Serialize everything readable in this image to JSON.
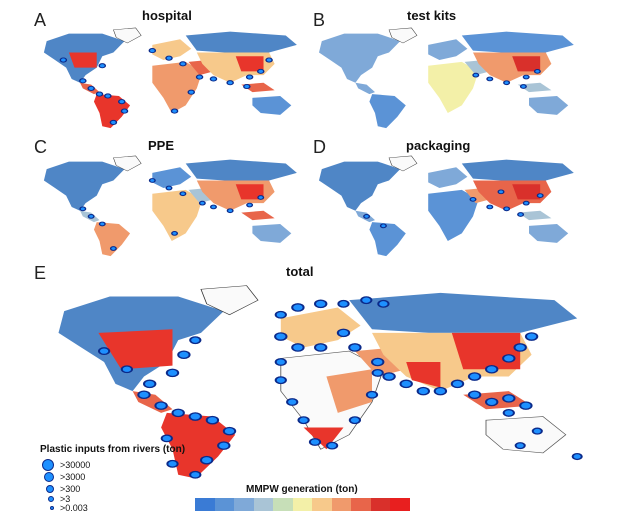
{
  "panels": [
    {
      "letter": "A",
      "title": "hospital"
    },
    {
      "letter": "B",
      "title": "test kits"
    },
    {
      "letter": "C",
      "title": "PPE"
    },
    {
      "letter": "D",
      "title": "packaging"
    },
    {
      "letter": "E",
      "title": "total"
    }
  ],
  "legend": {
    "title": "Plastic inputs from rivers (ton)",
    "items": [
      ">30000",
      ">3000",
      ">300",
      ">3",
      ">0.003"
    ]
  },
  "colorbar": {
    "title": "MMPW generation (ton)",
    "colors": [
      "#3a7bd5",
      "#5b93d6",
      "#7fa9d8",
      "#a9c4d6",
      "#c7dfb8",
      "#f3f0a8",
      "#f7c98b",
      "#f09a6c",
      "#e8654a",
      "#d9302b",
      "#e81f1f"
    ]
  },
  "colors": {
    "ocean": "#ffffff",
    "land_low": "#4f86c6",
    "land_mid": "#f7c98b",
    "land_high": "#e8352b",
    "point_fill": "#1e90ff",
    "point_stroke": "#0b2a8a"
  }
}
